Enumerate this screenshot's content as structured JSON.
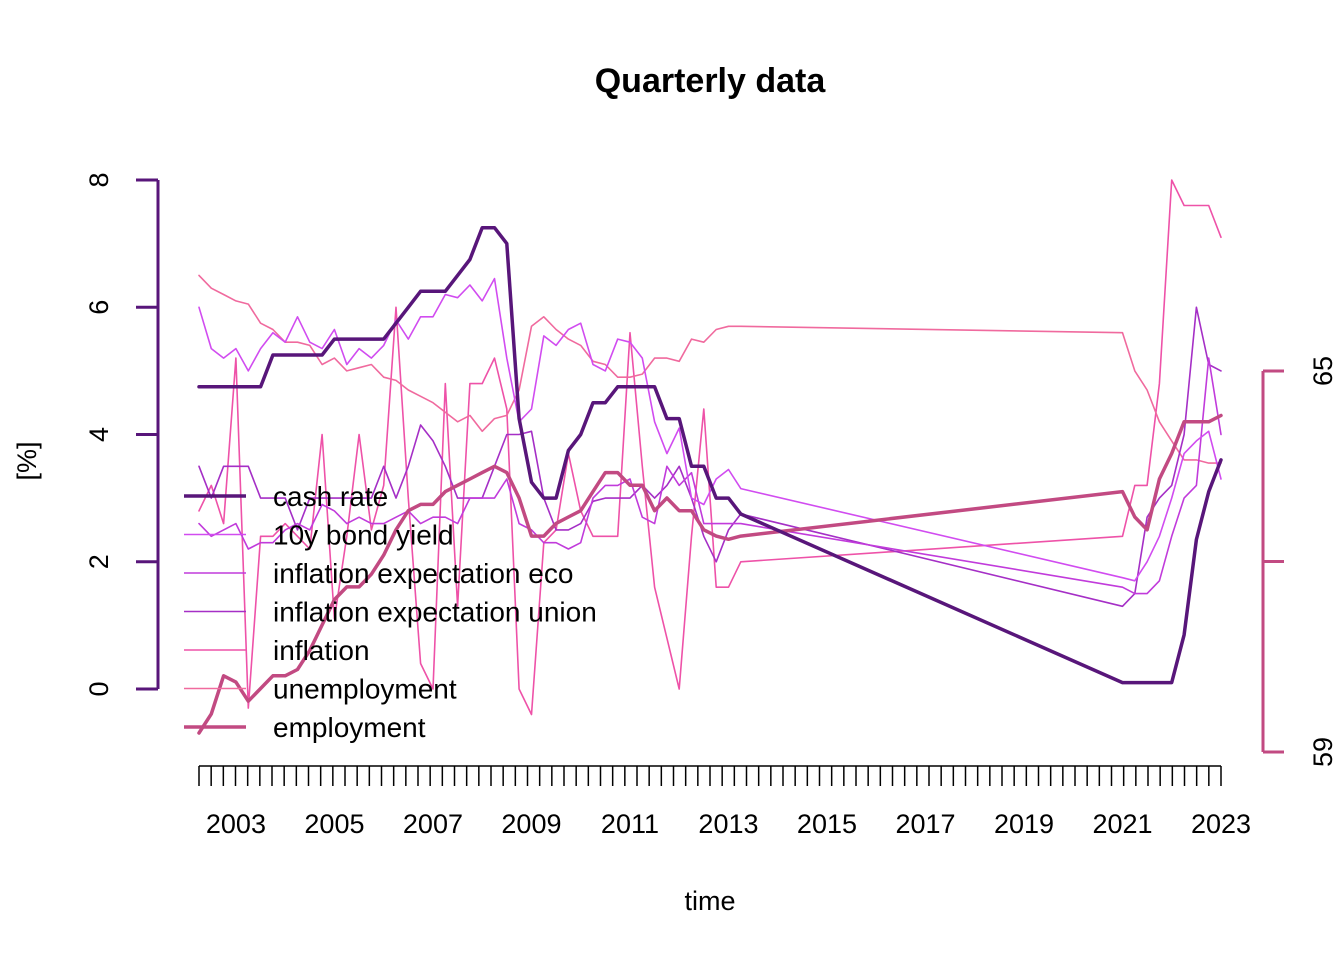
{
  "chart_data": {
    "type": "line",
    "title": "Quarterly data",
    "xlabel": "time",
    "ylabel": "[%]",
    "x_ticks": [
      "2003",
      "2005",
      "2007",
      "2009",
      "2011",
      "2013",
      "2015",
      "2017",
      "2019",
      "2021",
      "2023"
    ],
    "y_left": {
      "ticks": [
        "0",
        "2",
        "4",
        "6",
        "8"
      ],
      "range": [
        -0.8,
        8.2
      ]
    },
    "y_right": {
      "ticks": [
        "59",
        "65"
      ],
      "range": [
        59,
        65
      ]
    },
    "legend_position": "left-center",
    "series": [
      {
        "name": "cash rate",
        "color": "#58167a",
        "width": 3.5,
        "axis": "left",
        "x": [
          2002.25,
          2002.5,
          2002.75,
          2003,
          2003.25,
          2003.5,
          2003.75,
          2004,
          2004.25,
          2004.5,
          2004.75,
          2005,
          2005.25,
          2005.5,
          2005.75,
          2006,
          2006.25,
          2006.5,
          2006.75,
          2007,
          2007.25,
          2007.5,
          2007.75,
          2008,
          2008.25,
          2008.5,
          2008.75,
          2009,
          2009.25,
          2009.5,
          2009.75,
          2010,
          2010.25,
          2010.5,
          2010.75,
          2011,
          2011.25,
          2011.5,
          2011.75,
          2012,
          2012.25,
          2012.5,
          2012.75,
          2013,
          2013.25,
          2021,
          2021.25,
          2021.5,
          2021.75,
          2022,
          2022.25,
          2022.5,
          2022.75,
          2023
        ],
        "y": [
          4.75,
          4.75,
          4.75,
          4.75,
          4.75,
          4.75,
          5.25,
          5.25,
          5.25,
          5.25,
          5.25,
          5.5,
          5.5,
          5.5,
          5.5,
          5.5,
          5.75,
          6.0,
          6.25,
          6.25,
          6.25,
          6.5,
          6.75,
          7.25,
          7.25,
          7.0,
          4.25,
          3.25,
          3.0,
          3.0,
          3.75,
          4.0,
          4.5,
          4.5,
          4.75,
          4.75,
          4.75,
          4.75,
          4.25,
          4.25,
          3.5,
          3.5,
          3.0,
          3.0,
          2.75,
          0.1,
          0.1,
          0.1,
          0.1,
          0.1,
          0.85,
          2.35,
          3.1,
          3.6
        ]
      },
      {
        "name": "10y bond yield",
        "color": "#d14cf0",
        "width": 1.6,
        "axis": "left",
        "x": [
          2002.25,
          2002.5,
          2002.75,
          2003,
          2003.25,
          2003.5,
          2003.75,
          2004,
          2004.25,
          2004.5,
          2004.75,
          2005,
          2005.25,
          2005.5,
          2005.75,
          2006,
          2006.25,
          2006.5,
          2006.75,
          2007,
          2007.25,
          2007.5,
          2007.75,
          2008,
          2008.25,
          2008.5,
          2008.75,
          2009,
          2009.25,
          2009.5,
          2009.75,
          2010,
          2010.25,
          2010.5,
          2010.75,
          2011,
          2011.25,
          2011.5,
          2011.75,
          2012,
          2012.25,
          2012.5,
          2012.75,
          2013,
          2013.25,
          2021,
          2021.25,
          2021.5,
          2021.75,
          2022,
          2022.25,
          2022.5,
          2022.75,
          2023
        ],
        "y": [
          6.0,
          5.35,
          5.2,
          5.35,
          5.0,
          5.35,
          5.6,
          5.45,
          5.85,
          5.45,
          5.35,
          5.65,
          5.1,
          5.35,
          5.2,
          5.4,
          5.8,
          5.5,
          5.85,
          5.85,
          6.2,
          6.15,
          6.35,
          6.1,
          6.45,
          5.2,
          4.2,
          4.4,
          5.55,
          5.4,
          5.65,
          5.75,
          5.1,
          5.0,
          5.5,
          5.45,
          5.2,
          4.2,
          3.7,
          4.1,
          3.0,
          2.9,
          3.3,
          3.45,
          3.15,
          1.75,
          1.7,
          2.0,
          2.4,
          3.0,
          3.7,
          3.9,
          4.05,
          3.3
        ]
      },
      {
        "name": "inflation expectation eco",
        "color": "#c13bdb",
        "width": 1.6,
        "axis": "left",
        "x": [
          2002.25,
          2002.5,
          2002.75,
          2003,
          2003.25,
          2003.5,
          2003.75,
          2004,
          2004.25,
          2004.5,
          2004.75,
          2005,
          2005.25,
          2005.5,
          2005.75,
          2006,
          2006.25,
          2006.5,
          2006.75,
          2007,
          2007.25,
          2007.5,
          2007.75,
          2008,
          2008.25,
          2008.5,
          2008.75,
          2009,
          2009.25,
          2009.5,
          2009.75,
          2010,
          2010.25,
          2010.5,
          2010.75,
          2011,
          2011.25,
          2011.5,
          2011.75,
          2012,
          2012.25,
          2012.5,
          2012.75,
          2013,
          2013.25,
          2021,
          2021.25,
          2021.5,
          2021.75,
          2022,
          2022.25,
          2022.5,
          2022.75,
          2023
        ],
        "y": [
          2.6,
          2.4,
          2.5,
          2.6,
          2.2,
          2.3,
          2.3,
          2.5,
          2.6,
          2.5,
          2.9,
          2.8,
          2.6,
          2.7,
          2.6,
          2.6,
          2.7,
          2.8,
          2.6,
          2.7,
          2.7,
          2.6,
          3.0,
          3.0,
          3.0,
          3.3,
          2.6,
          2.5,
          2.3,
          2.3,
          2.2,
          2.3,
          3.0,
          3.2,
          3.2,
          3.3,
          2.7,
          2.6,
          3.5,
          3.2,
          3.4,
          2.6,
          2.6,
          2.6,
          2.6,
          1.6,
          1.5,
          1.5,
          1.7,
          2.4,
          3.0,
          3.2,
          5.2,
          4.0
        ]
      },
      {
        "name": "inflation expectation union",
        "color": "#a52fc6",
        "width": 1.6,
        "axis": "left",
        "x": [
          2002.25,
          2002.5,
          2002.75,
          2003,
          2003.25,
          2003.5,
          2003.75,
          2004,
          2004.25,
          2004.5,
          2004.75,
          2005,
          2005.25,
          2005.5,
          2005.75,
          2006,
          2006.25,
          2006.5,
          2006.75,
          2007,
          2007.25,
          2007.5,
          2007.75,
          2008,
          2008.25,
          2008.5,
          2008.75,
          2009,
          2009.25,
          2009.5,
          2009.75,
          2010,
          2010.25,
          2010.5,
          2010.75,
          2011,
          2011.25,
          2011.5,
          2011.75,
          2012,
          2012.25,
          2012.5,
          2012.75,
          2013,
          2013.25,
          2021,
          2021.25,
          2021.5,
          2021.75,
          2022,
          2022.25,
          2022.5,
          2022.75,
          2023
        ],
        "y": [
          3.5,
          3.0,
          3.5,
          3.5,
          3.5,
          3.0,
          3.0,
          3.0,
          2.5,
          3.0,
          3.0,
          3.0,
          3.0,
          3.0,
          3.0,
          3.5,
          3.0,
          3.5,
          4.15,
          3.9,
          3.5,
          3.0,
          3.0,
          3.0,
          3.5,
          4.0,
          4.0,
          4.05,
          3.0,
          2.5,
          2.5,
          2.6,
          2.95,
          3.0,
          3.0,
          3.0,
          3.2,
          3.0,
          3.2,
          3.5,
          3.0,
          2.4,
          2.0,
          2.5,
          2.75,
          1.3,
          1.5,
          2.7,
          3.0,
          3.2,
          4.0,
          6.0,
          5.1,
          5.0
        ]
      },
      {
        "name": "inflation",
        "color": "#ee52a8",
        "width": 1.6,
        "axis": "left",
        "x": [
          2002.25,
          2002.5,
          2002.75,
          2003,
          2003.25,
          2003.5,
          2003.75,
          2004,
          2004.25,
          2004.5,
          2004.75,
          2005,
          2005.25,
          2005.5,
          2005.75,
          2006,
          2006.25,
          2006.5,
          2006.75,
          2007,
          2007.25,
          2007.5,
          2007.75,
          2008,
          2008.25,
          2008.5,
          2008.75,
          2009,
          2009.25,
          2009.5,
          2009.75,
          2010,
          2010.25,
          2010.5,
          2010.75,
          2011,
          2011.25,
          2011.5,
          2011.75,
          2012,
          2012.25,
          2012.5,
          2012.75,
          2013,
          2013.25,
          2021,
          2021.25,
          2021.5,
          2021.75,
          2022,
          2022.25,
          2022.5,
          2022.75,
          2023
        ],
        "y": [
          2.8,
          3.2,
          2.6,
          5.2,
          -0.3,
          2.4,
          2.4,
          2.6,
          2.4,
          2.2,
          4.0,
          1.1,
          2.4,
          4.0,
          2.5,
          3.2,
          6.0,
          3.0,
          0.4,
          0.0,
          4.8,
          1.3,
          4.8,
          4.8,
          5.2,
          4.4,
          0.0,
          -0.4,
          2.3,
          2.5,
          3.7,
          2.8,
          2.4,
          2.4,
          2.4,
          5.6,
          3.5,
          1.6,
          0.8,
          0.0,
          2.4,
          4.4,
          1.6,
          1.6,
          2.0,
          2.4,
          3.2,
          3.2,
          4.8,
          8.0,
          7.6,
          7.6,
          7.6,
          7.1
        ]
      },
      {
        "name": "unemployment",
        "color": "#f06a9e",
        "width": 1.6,
        "axis": "left",
        "x": [
          2002.25,
          2002.5,
          2002.75,
          2003,
          2003.25,
          2003.5,
          2003.75,
          2004,
          2004.25,
          2004.5,
          2004.75,
          2005,
          2005.25,
          2005.5,
          2005.75,
          2006,
          2006.25,
          2006.5,
          2006.75,
          2007,
          2007.25,
          2007.5,
          2007.75,
          2008,
          2008.25,
          2008.5,
          2008.75,
          2009,
          2009.25,
          2009.5,
          2009.75,
          2010,
          2010.25,
          2010.5,
          2010.75,
          2011,
          2011.25,
          2011.5,
          2011.75,
          2012,
          2012.25,
          2012.5,
          2012.75,
          2013,
          2013.25,
          2021,
          2021.25,
          2021.5,
          2021.75,
          2022,
          2022.25,
          2022.5,
          2022.75,
          2023
        ],
        "y": [
          6.5,
          6.3,
          6.2,
          6.1,
          6.05,
          5.75,
          5.65,
          5.45,
          5.45,
          5.4,
          5.1,
          5.2,
          5.0,
          5.05,
          5.1,
          4.9,
          4.85,
          4.7,
          4.6,
          4.5,
          4.35,
          4.2,
          4.3,
          4.05,
          4.25,
          4.3,
          4.7,
          5.7,
          5.85,
          5.65,
          5.5,
          5.4,
          5.15,
          5.1,
          4.9,
          4.9,
          4.95,
          5.2,
          5.2,
          5.15,
          5.5,
          5.45,
          5.65,
          5.7,
          5.7,
          5.6,
          5.0,
          4.7,
          4.2,
          3.9,
          3.6,
          3.6,
          3.55,
          3.55
        ]
      },
      {
        "name": "employment",
        "color": "#c24a82",
        "width": 3.5,
        "axis": "right",
        "x": [
          2002.25,
          2002.5,
          2002.75,
          2003,
          2003.25,
          2003.5,
          2003.75,
          2004,
          2004.25,
          2004.5,
          2004.75,
          2005,
          2005.25,
          2005.5,
          2005.75,
          2006,
          2006.25,
          2006.5,
          2006.75,
          2007,
          2007.25,
          2007.5,
          2007.75,
          2008,
          2008.25,
          2008.5,
          2008.75,
          2009,
          2009.25,
          2009.5,
          2009.75,
          2010,
          2010.25,
          2010.5,
          2010.75,
          2011,
          2011.25,
          2011.5,
          2011.75,
          2012,
          2012.25,
          2012.5,
          2012.75,
          2013,
          2013.25,
          2021,
          2021.25,
          2021.5,
          2021.75,
          2022,
          2022.25,
          2022.5,
          2022.75,
          2023
        ],
        "y": [
          59.3,
          59.6,
          60.2,
          60.1,
          59.8,
          60.0,
          60.2,
          60.2,
          60.3,
          60.6,
          61.0,
          61.4,
          61.6,
          61.6,
          61.8,
          62.1,
          62.5,
          62.8,
          62.9,
          62.9,
          63.1,
          63.2,
          63.3,
          63.4,
          63.5,
          63.4,
          63.0,
          62.4,
          62.4,
          62.6,
          62.7,
          62.8,
          63.1,
          63.4,
          63.4,
          63.2,
          63.2,
          62.8,
          63.0,
          62.8,
          62.8,
          62.5,
          62.4,
          62.35,
          62.4,
          63.1,
          62.7,
          62.5,
          63.3,
          63.7,
          64.2,
          64.2,
          64.2,
          64.3
        ]
      }
    ]
  }
}
